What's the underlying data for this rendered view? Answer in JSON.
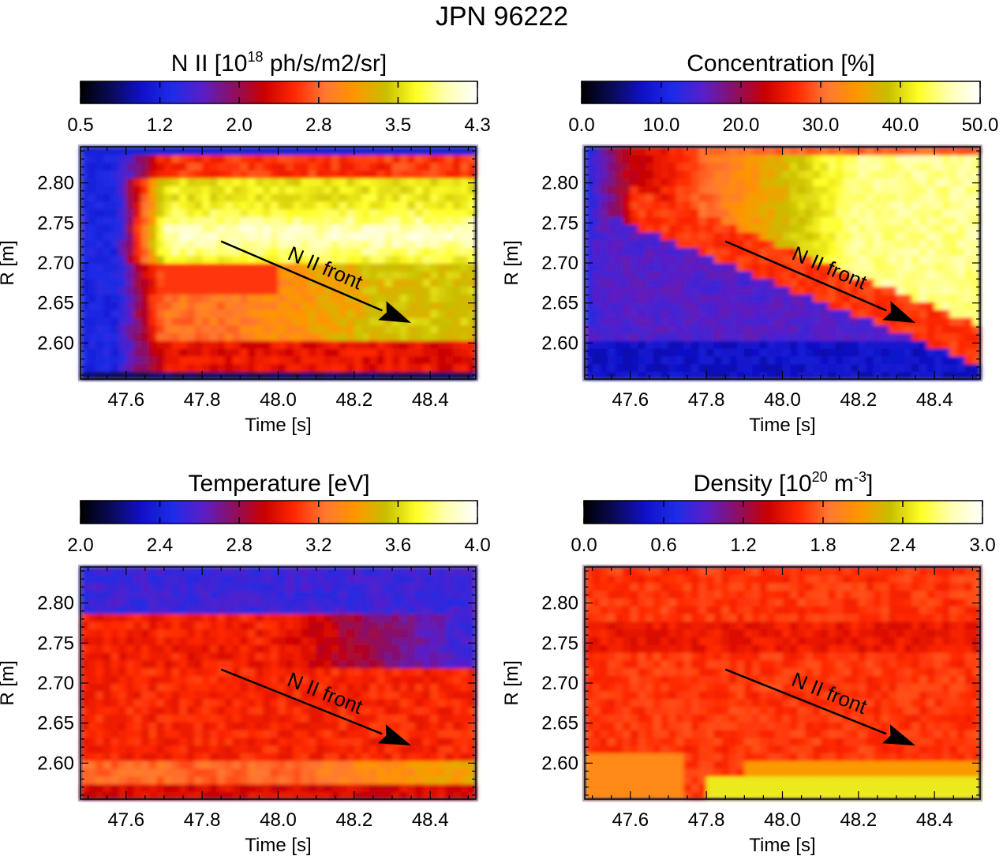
{
  "figure_title": "JPN 96222",
  "colormap": [
    "#000000",
    "#0a0a5a",
    "#1010c8",
    "#1e2ce6",
    "#5a1ec8",
    "#8c0f64",
    "#c80000",
    "#ff2800",
    "#ff7832",
    "#ff9600",
    "#c8be00",
    "#ffff28",
    "#ffffb4",
    "#ffffff"
  ],
  "chart_data": [
    {
      "type": "heatmap",
      "panel": "nii",
      "title": "N II [10",
      "title_sup": "18",
      "title_post": " ph/s/m2/sr]",
      "colorbar_ticks": [
        "0.5",
        "1.2",
        "2.0",
        "2.8",
        "3.5",
        "4.3"
      ],
      "colorbar_range": [
        0.5,
        4.3
      ],
      "xlabel": "Time [s]",
      "ylabel": "R [m]",
      "xticks": [
        "47.6",
        "47.8",
        "48.0",
        "48.2",
        "48.4"
      ],
      "yticks": [
        "2.60",
        "2.65",
        "2.70",
        "2.75",
        "2.80"
      ],
      "xlim": [
        47.48,
        48.52
      ],
      "ylim": [
        2.555,
        2.845
      ],
      "annotation": {
        "text": "N II front",
        "from": [
          47.85,
          2.727
        ],
        "to": [
          48.35,
          2.625
        ]
      }
    },
    {
      "type": "heatmap",
      "panel": "concentration",
      "title": "Concentration [%]",
      "title_sup": "",
      "title_post": "",
      "colorbar_ticks": [
        "0.0",
        "10.0",
        "20.0",
        "30.0",
        "40.0",
        "50.0"
      ],
      "colorbar_range": [
        0,
        50
      ],
      "xlabel": "Time [s]",
      "ylabel": "R [m]",
      "xticks": [
        "47.6",
        "47.8",
        "48.0",
        "48.2",
        "48.4"
      ],
      "yticks": [
        "2.60",
        "2.65",
        "2.70",
        "2.75",
        "2.80"
      ],
      "xlim": [
        47.48,
        48.52
      ],
      "ylim": [
        2.555,
        2.845
      ],
      "annotation": {
        "text": "N II front",
        "from": [
          47.85,
          2.727
        ],
        "to": [
          48.35,
          2.625
        ]
      }
    },
    {
      "type": "heatmap",
      "panel": "temperature",
      "title": "Temperature [eV]",
      "title_sup": "",
      "title_post": "",
      "colorbar_ticks": [
        "2.0",
        "2.4",
        "2.8",
        "3.2",
        "3.6",
        "4.0"
      ],
      "colorbar_range": [
        2.0,
        4.0
      ],
      "xlabel": "Time [s]",
      "ylabel": "R [m]",
      "xticks": [
        "47.6",
        "47.8",
        "48.0",
        "48.2",
        "48.4"
      ],
      "yticks": [
        "2.60",
        "2.65",
        "2.70",
        "2.75",
        "2.80"
      ],
      "xlim": [
        47.48,
        48.52
      ],
      "ylim": [
        2.555,
        2.845
      ],
      "annotation": {
        "text": "N II front",
        "from": [
          47.85,
          2.717
        ],
        "to": [
          48.35,
          2.622
        ]
      }
    },
    {
      "type": "heatmap",
      "panel": "density",
      "title": "Density [10",
      "title_sup": "20",
      "title_post": " m",
      "title_sup2": "-3",
      "title_post2": "]",
      "colorbar_ticks": [
        "0.0",
        "0.6",
        "1.2",
        "1.8",
        "2.4",
        "3.0"
      ],
      "colorbar_range": [
        0,
        3.0
      ],
      "xlabel": "Time [s]",
      "ylabel": "R [m]",
      "xticks": [
        "47.6",
        "47.8",
        "48.0",
        "48.2",
        "48.4"
      ],
      "yticks": [
        "2.60",
        "2.65",
        "2.70",
        "2.75",
        "2.80"
      ],
      "xlim": [
        47.48,
        48.52
      ],
      "ylim": [
        2.555,
        2.845
      ],
      "annotation": {
        "text": "N II front",
        "from": [
          47.85,
          2.717
        ],
        "to": [
          48.35,
          2.622
        ]
      }
    }
  ]
}
